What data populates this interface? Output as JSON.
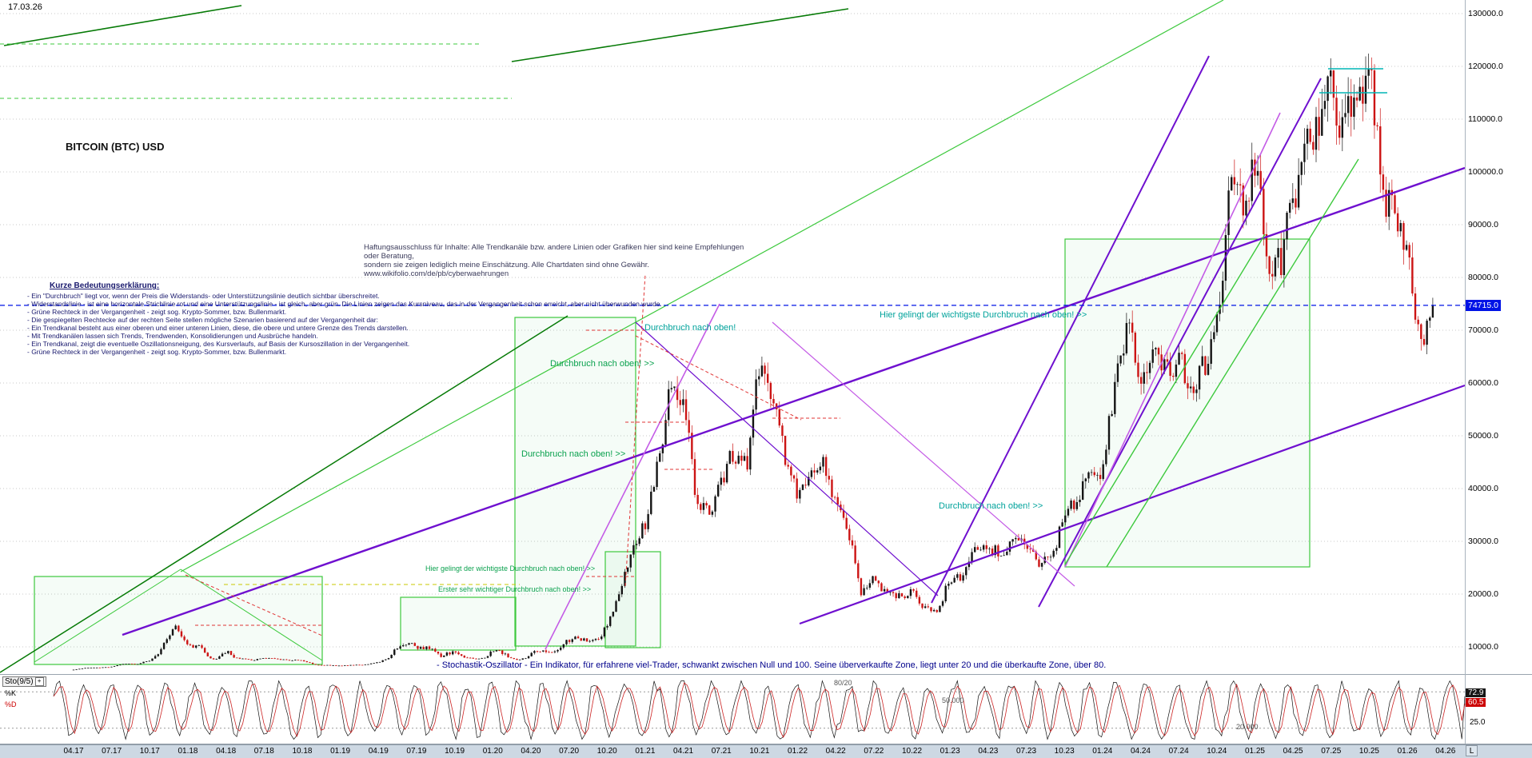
{
  "meta": {
    "date_label": "17.03.26",
    "instrument": "BITCOIN (BTC) USD"
  },
  "palette": {
    "up": "#141414",
    "down": "#cc1414",
    "purple": "#6f10cf",
    "orchid": "#c45ce6",
    "dkgreen": "#067a06",
    "ltgreen": "#3dc93d",
    "teal": "#00b6b6",
    "yellow": "#c9c900",
    "red": "#e03434",
    "blue": "#0013e6",
    "grid": "#c9c9c9",
    "navy": "#1a1a6e",
    "annotation_green": "#0aa14e",
    "annotation_teal": "#00a29b",
    "axis_strip_bg": "#cdd8e3"
  },
  "legend": {
    "heading": "Kurze Bedeutungserklärung:",
    "lines": [
      "- Ein \"Durchbruch\" liegt vor, wenn der Preis die Widerstands- oder Unterstützungslinie deutlich sichtbar überschreitet.",
      "- Widerstandslinie - ist eine horizontale Strichlinie rot und eine Unterstützungslinie - ist gleich, aber grün. Die Linien zeigen das Kursniveau, das in der Vergangenheit schon erreicht, aber nicht überwunden wurde.",
      "- Grüne Rechteck in der Vergangenheit - zeigt sog. Krypto-Sommer, bzw. Bullenmarkt.",
      "- Die gespiegelten Rechtecke auf der rechten Seite stellen mögliche Szenarien basierend auf der Vergangenheit dar:",
      "- Ein Trendkanal besteht aus einer oberen und einer unteren Linien, diese, die obere und untere Grenze des Trends darstellen.",
      "- Mit Trendkanälen lassen sich Trends, Trendwenden, Konsolidierungen und Ausbrüche handeln.",
      "- Ein Trendkanal, zeigt die eventuelle Oszillationsneigung, des Kursverlaufs, auf Basis der Kursoszillation in der Vergangenheit.",
      "- Grüne Rechteck in der Vergangenheit - zeigt sog. Krypto-Sommer, bzw. Bullenmarkt."
    ]
  },
  "disclaimer": {
    "line1": "Haftungsausschluss für Inhalte: Alle Trendkanäle bzw. andere Linien oder Grafiken hier sind keine Empfehlungen oder Beratung,",
    "line2": "sondern sie zeigen lediglich meine Einschätzung. Alle Chartdaten sind ohne Gewähr. www.wikifolio.com/de/pb/cyberwaehrungen"
  },
  "stochastic": {
    "label": "Sto(9/5)",
    "settings_icon": "+",
    "k_label": "%K",
    "d_label": "%D",
    "k_value": "72.9",
    "d_value": "60.5",
    "extra_value": "25.0",
    "levels_label": "80/20",
    "level_50_label": "50.000",
    "level_20_label": "20.000",
    "description": "- Stochastik-Oszillator - Ein Indikator, für erfahrene viel-Trader, schwankt zwischen Null und 100. Seine überverkaufte Zone, liegt unter 20 und die überkaufte Zone, über 80."
  },
  "scrollbar": {
    "end_label": "L"
  },
  "chart_data": {
    "type": "candlestick",
    "title": "BITCOIN (BTC) USD",
    "x_unit": "month",
    "x_start": "04.17",
    "x_end": "03.26",
    "x_tick_labels": [
      "04.17",
      "07.17",
      "10.17",
      "01.18",
      "04.18",
      "07.18",
      "10.18",
      "01.19",
      "04.19",
      "07.19",
      "10.19",
      "01.20",
      "04.20",
      "07.20",
      "10.20",
      "01.21",
      "04.21",
      "07.21",
      "10.21",
      "01.22",
      "04.22",
      "07.22",
      "10.22",
      "01.23",
      "04.23",
      "07.23",
      "10.23",
      "01.24",
      "04.24",
      "07.24",
      "10.24",
      "01.25",
      "04.25",
      "07.25",
      "10.25",
      "01.26",
      "04.26"
    ],
    "ylim": [
      0,
      130000
    ],
    "y_tick_values": [
      130000,
      120000,
      110000,
      100000,
      90000,
      80000,
      70000,
      60000,
      50000,
      40000,
      30000,
      20000,
      10000
    ],
    "y_tick_labels": [
      "130000.0",
      "120000.0",
      "110000.0",
      "100000.0",
      "90000.0",
      "80000.0",
      "70000.0",
      "60000.0",
      "50000.0",
      "40000.0",
      "30000.0",
      "20000.0",
      "10000.0"
    ],
    "monthly_close_usd": [
      1350,
      2300,
      2500,
      2870,
      4700,
      4350,
      6450,
      9900,
      14000,
      10200,
      10300,
      6950,
      9250,
      7500,
      6400,
      7750,
      7000,
      6600,
      6300,
      4000,
      3750,
      3460,
      3850,
      4100,
      5350,
      8550,
      10800,
      10000,
      9600,
      8300,
      9150,
      7550,
      7200,
      9350,
      8550,
      6450,
      8650,
      9450,
      9150,
      11350,
      11650,
      10800,
      13800,
      19700,
      29000,
      33100,
      45200,
      58800,
      57750,
      37300,
      35000,
      41500,
      47100,
      43800,
      64000,
      58000,
      46200,
      38500,
      43200,
      45500,
      37650,
      31800,
      19950,
      23300,
      20050,
      19400,
      20500,
      17150,
      16550,
      23100,
      23150,
      28450,
      29250,
      27200,
      30450,
      29250,
      25950,
      26950,
      34650,
      37700,
      42250,
      42550,
      61150,
      71300,
      60650,
      67500,
      62750,
      64600,
      58950,
      63350,
      70200,
      96400,
      93400,
      102400,
      84350,
      82550,
      94200,
      104600,
      107100,
      115750,
      108200,
      114000,
      121000,
      96000,
      93000,
      83000,
      67000,
      74715
    ],
    "current_price": 74715.0,
    "price_label": "74715.0",
    "indicator": {
      "name": "Sto(9/5)",
      "k": 72.9,
      "d": 60.5,
      "overbought": 80,
      "oversold": 20
    },
    "annotations": [
      {
        "text": "Durchbruch nach oben!",
        "tone": "teal"
      },
      {
        "text": "Durchbruch nach oben! >>",
        "tone": "green"
      },
      {
        "text": "Durchbruch nach oben! >>",
        "tone": "green"
      },
      {
        "text": "Hier gelingt der wichtigste Durchbruch nach oben! >>",
        "tone": "teal"
      },
      {
        "text": "Durchbruch nach oben! >>",
        "tone": "teal"
      },
      {
        "text": "Hier gelingt der wichtigste Durchbruch nach oben! >>",
        "tone": "green"
      },
      {
        "text": "Erster sehr wichtiger Durchbruch nach oben! >>",
        "tone": "green"
      }
    ]
  }
}
